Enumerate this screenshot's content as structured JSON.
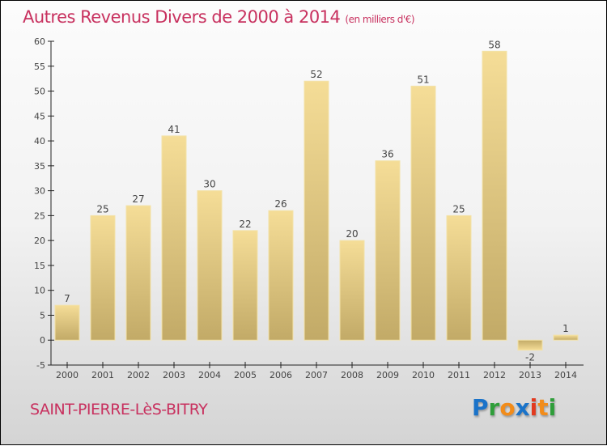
{
  "title": "Autres Revenus Divers de 2000 à 2014",
  "unit": "(en milliers d'€)",
  "town": "SAINT-PIERRE-LèS-BITRY",
  "logo": {
    "text": "Proxiti",
    "letters": [
      "P",
      "r",
      "o",
      "x",
      "i",
      "t",
      "i"
    ],
    "colors": [
      "#1a73c9",
      "#2f9e3a",
      "#f28c1a",
      "#1a73c9",
      "#e23a1f",
      "#f28c1a",
      "#2f9e3a"
    ]
  },
  "colors": {
    "bar_top": "#f5dd97",
    "bar_bottom": "#c2aa67",
    "title": "#c8315f"
  },
  "chart_data": {
    "type": "bar",
    "title": "Autres Revenus Divers de 2000 à 2014",
    "categories": [
      "2000",
      "2001",
      "2002",
      "2003",
      "2004",
      "2005",
      "2006",
      "2007",
      "2008",
      "2009",
      "2010",
      "2011",
      "2012",
      "2013",
      "2014"
    ],
    "values": [
      7,
      25,
      27,
      41,
      30,
      22,
      26,
      52,
      20,
      36,
      51,
      25,
      58,
      -2,
      1
    ],
    "ylim": [
      -5,
      60
    ],
    "yticks": [
      -5,
      0,
      5,
      10,
      15,
      20,
      25,
      30,
      35,
      40,
      45,
      50,
      55,
      60
    ],
    "xlabel": "",
    "ylabel": "",
    "grid": false
  }
}
